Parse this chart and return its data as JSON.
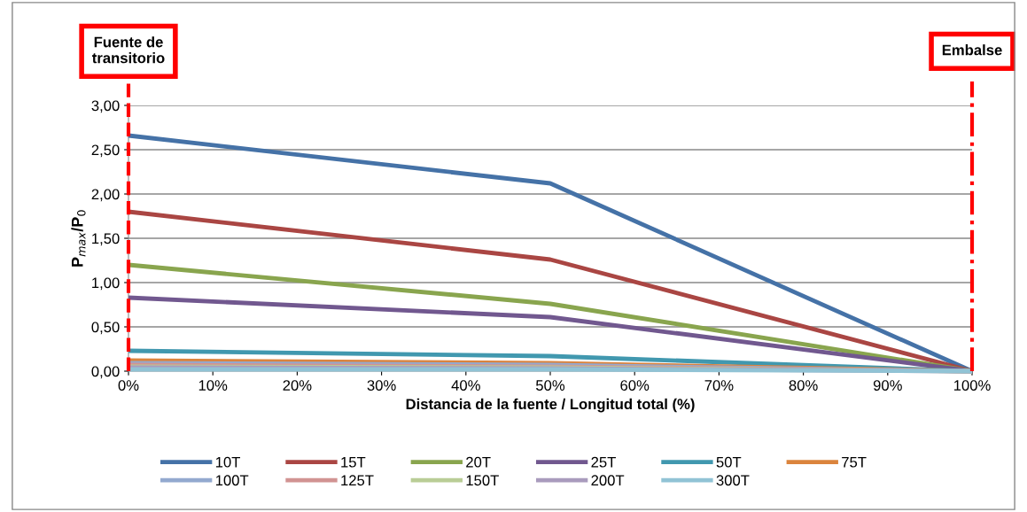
{
  "chart_data": {
    "type": "line",
    "xlabel": "Distancia de la fuente / Longitud total (%)",
    "ylabel": "P$_{max}$/P$_{0}$",
    "x": [
      0,
      50,
      100
    ],
    "series": [
      {
        "name": "10T",
        "color": "#4572a7",
        "values": [
          2.66,
          2.12,
          0
        ]
      },
      {
        "name": "15T",
        "color": "#aa4643",
        "values": [
          1.8,
          1.26,
          0
        ]
      },
      {
        "name": "20T",
        "color": "#89a54e",
        "values": [
          1.2,
          0.76,
          0
        ]
      },
      {
        "name": "25T",
        "color": "#71588f",
        "values": [
          0.83,
          0.61,
          0
        ]
      },
      {
        "name": "50T",
        "color": "#4198af",
        "values": [
          0.23,
          0.17,
          0
        ]
      },
      {
        "name": "75T",
        "color": "#db843d",
        "values": [
          0.12,
          0.09,
          0
        ]
      },
      {
        "name": "100T",
        "color": "#93a9cf",
        "values": [
          0.09,
          0.07,
          0
        ]
      },
      {
        "name": "125T",
        "color": "#d19392",
        "values": [
          0.07,
          0.05,
          0
        ]
      },
      {
        "name": "150T",
        "color": "#b9cd96",
        "values": [
          0.05,
          0.04,
          0
        ]
      },
      {
        "name": "200T",
        "color": "#a99bbd",
        "values": [
          0.04,
          0.03,
          0
        ]
      },
      {
        "name": "300T",
        "color": "#91c3d5",
        "values": [
          0.02,
          0.02,
          0
        ]
      }
    ],
    "xlim": [
      0,
      100
    ],
    "xticks": [
      {
        "value": 0,
        "label": "0%"
      },
      {
        "value": 10,
        "label": "10%"
      },
      {
        "value": 20,
        "label": "20%"
      },
      {
        "value": 30,
        "label": "30%"
      },
      {
        "value": 40,
        "label": "40%"
      },
      {
        "value": 50,
        "label": "50%"
      },
      {
        "value": 60,
        "label": "60%"
      },
      {
        "value": 70,
        "label": "70%"
      },
      {
        "value": 80,
        "label": "80%"
      },
      {
        "value": 90,
        "label": "90%"
      },
      {
        "value": 100,
        "label": "100%"
      }
    ],
    "ylim": [
      0,
      3
    ],
    "yticks": [
      {
        "value": 0,
        "label": "0,00"
      },
      {
        "value": 0.5,
        "label": "0,50"
      },
      {
        "value": 1,
        "label": "1,00"
      },
      {
        "value": 1.5,
        "label": "1,50"
      },
      {
        "value": 2,
        "label": "2,00"
      },
      {
        "value": 2.5,
        "label": "2,50"
      },
      {
        "value": 3,
        "label": "3,00"
      }
    ],
    "ref_lines": [
      {
        "axis": "x",
        "value": 0,
        "label": "Fuente de\ntransitorio",
        "color": "#ff0000",
        "line_style": "dashed"
      },
      {
        "axis": "x",
        "value": 100,
        "label": "Embalse",
        "color": "#ff0000",
        "line_style": "dashdot"
      }
    ],
    "grid": "y",
    "legend": "bottom",
    "marker": "none",
    "line_style": "solid"
  }
}
